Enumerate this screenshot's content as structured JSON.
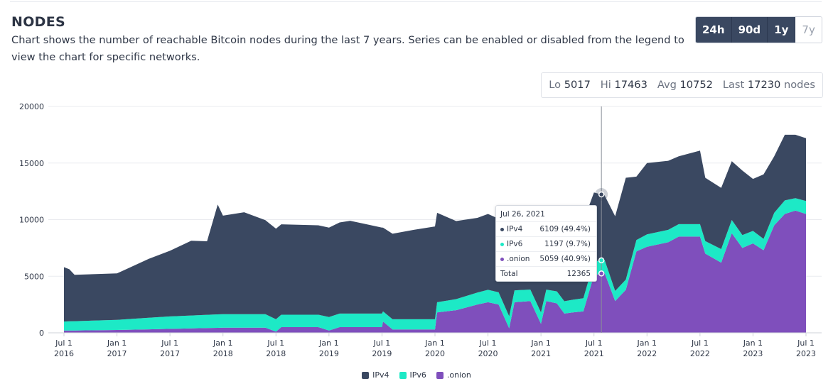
{
  "header": {
    "title": "NODES",
    "description": "Chart shows the number of reachable Bitcoin nodes during the last 7 years. Series can be enabled or disabled from the legend to view the chart for specific networks."
  },
  "range_buttons": [
    {
      "label": "24h",
      "active": true
    },
    {
      "label": "90d",
      "active": true
    },
    {
      "label": "1y",
      "active": true
    },
    {
      "label": "7y",
      "active": false
    }
  ],
  "stats": {
    "lo_label": "Lo",
    "lo": "5017",
    "hi_label": "Hi",
    "hi": "17463",
    "avg_label": "Avg",
    "avg": "10752",
    "last_label": "Last",
    "last": "17230",
    "unit": "nodes"
  },
  "tooltip": {
    "date": "Jul 26, 2021",
    "rows": [
      {
        "name": "IPv4",
        "value": "6109 (49.4%)",
        "color": "#3a4861"
      },
      {
        "name": "IPv6",
        "value": "1197 (9.7%)",
        "color": "#1de9c6"
      },
      {
        "name": ".onion",
        "value": "5059 (40.9%)",
        "color": "#7f4fbc"
      }
    ],
    "total_label": "Total",
    "total": "12365"
  },
  "colors": {
    "ipv4": "#3a4861",
    "ipv6": "#1de9c6",
    "onion": "#7f4fbc",
    "grid": "#e9ebef",
    "crosshair": "#8a8f99"
  },
  "chart_data": {
    "type": "area",
    "stacked": true,
    "title": "",
    "xlabel": "",
    "ylabel": "",
    "ylim": [
      0,
      20000
    ],
    "yticks": [
      "20000",
      "15000",
      "10000",
      "5000",
      "0"
    ],
    "ytick_values": [
      20000,
      15000,
      10000,
      5000,
      0
    ],
    "xticks": [
      {
        "label": [
          "Jul 1",
          "2016"
        ],
        "t": 0
      },
      {
        "label": [
          "Jan 1",
          "2017"
        ],
        "t": 0.5
      },
      {
        "label": [
          "Jul 1",
          "2017"
        ],
        "t": 1.0
      },
      {
        "label": [
          "Jan 1",
          "2018"
        ],
        "t": 1.5
      },
      {
        "label": [
          "Jul 1",
          "2018"
        ],
        "t": 2.0
      },
      {
        "label": [
          "Jan 1",
          "2019"
        ],
        "t": 2.5
      },
      {
        "label": [
          "Jul 1",
          "2019"
        ],
        "t": 3.0
      },
      {
        "label": [
          "Jan 1",
          "2020"
        ],
        "t": 3.5
      },
      {
        "label": [
          "Jul 1",
          "2020"
        ],
        "t": 4.0
      },
      {
        "label": [
          "Jan 1",
          "2021"
        ],
        "t": 4.5
      },
      {
        "label": [
          "Jul 1",
          "2021"
        ],
        "t": 5.0
      },
      {
        "label": [
          "Jan 1",
          "2022"
        ],
        "t": 5.5
      },
      {
        "label": [
          "Jul 1",
          "2022"
        ],
        "t": 6.0
      },
      {
        "label": [
          "Jan 1",
          "2023"
        ],
        "t": 6.5
      },
      {
        "label": [
          "Jul 1",
          "2023"
        ],
        "t": 7.0
      }
    ],
    "series": [
      {
        "name": ".onion",
        "color": "#7f4fbc",
        "points": [
          [
            0,
            200
          ],
          [
            0.5,
            250
          ],
          [
            1.0,
            350
          ],
          [
            1.5,
            450
          ],
          [
            1.9,
            450
          ],
          [
            2.0,
            100
          ],
          [
            2.05,
            500
          ],
          [
            2.4,
            500
          ],
          [
            2.5,
            200
          ],
          [
            2.6,
            500
          ],
          [
            3.0,
            500
          ],
          [
            3.01,
            1000
          ],
          [
            3.1,
            300
          ],
          [
            3.4,
            300
          ],
          [
            3.5,
            300
          ],
          [
            3.52,
            1800
          ],
          [
            3.7,
            2000
          ],
          [
            3.9,
            2500
          ],
          [
            4.0,
            2700
          ],
          [
            4.1,
            2500
          ],
          [
            4.2,
            400
          ],
          [
            4.25,
            2700
          ],
          [
            4.4,
            2800
          ],
          [
            4.5,
            800
          ],
          [
            4.55,
            2800
          ],
          [
            4.65,
            2600
          ],
          [
            4.72,
            1700
          ],
          [
            4.8,
            1800
          ],
          [
            4.9,
            1900
          ],
          [
            5.0,
            5100
          ],
          [
            5.1,
            5300
          ],
          [
            5.2,
            2800
          ],
          [
            5.3,
            3800
          ],
          [
            5.4,
            7200
          ],
          [
            5.5,
            7600
          ],
          [
            5.7,
            8000
          ],
          [
            5.8,
            8500
          ],
          [
            6.0,
            8500
          ],
          [
            6.05,
            7000
          ],
          [
            6.2,
            6200
          ],
          [
            6.3,
            8800
          ],
          [
            6.4,
            7500
          ],
          [
            6.5,
            7900
          ],
          [
            6.6,
            7300
          ],
          [
            6.7,
            9500
          ],
          [
            6.8,
            10500
          ],
          [
            6.9,
            10800
          ],
          [
            7.0,
            10500
          ]
        ]
      },
      {
        "name": "IPv6",
        "color": "#1de9c6",
        "points": [
          [
            0,
            800
          ],
          [
            0.5,
            900
          ],
          [
            1.0,
            1100
          ],
          [
            1.5,
            1200
          ],
          [
            1.9,
            1200
          ],
          [
            2.0,
            1100
          ],
          [
            2.4,
            1100
          ],
          [
            2.5,
            1200
          ],
          [
            3.0,
            1200
          ],
          [
            3.01,
            900
          ],
          [
            3.5,
            900
          ],
          [
            3.52,
            900
          ],
          [
            4.0,
            1100
          ],
          [
            4.5,
            1000
          ],
          [
            5.0,
            1200
          ],
          [
            5.1,
            1150
          ],
          [
            5.2,
            900
          ],
          [
            5.3,
            900
          ],
          [
            5.4,
            1000
          ],
          [
            5.5,
            1100
          ],
          [
            5.8,
            1100
          ],
          [
            6.0,
            1100
          ],
          [
            6.05,
            1100
          ],
          [
            6.2,
            1200
          ],
          [
            6.5,
            1100
          ],
          [
            6.6,
            1000
          ],
          [
            6.7,
            1100
          ],
          [
            6.8,
            1200
          ],
          [
            6.9,
            1100
          ],
          [
            7.0,
            1150
          ]
        ]
      },
      {
        "name": "IPv4",
        "color": "#3a4861",
        "points": [
          [
            0,
            4800
          ],
          [
            0.05,
            4600
          ],
          [
            0.1,
            4100
          ],
          [
            0.5,
            4100
          ],
          [
            0.8,
            5200
          ],
          [
            1.0,
            5800
          ],
          [
            1.2,
            6600
          ],
          [
            1.35,
            6500
          ],
          [
            1.45,
            9700
          ],
          [
            1.5,
            8700
          ],
          [
            1.7,
            9000
          ],
          [
            1.9,
            8300
          ],
          [
            2.0,
            8000
          ],
          [
            2.4,
            7900
          ],
          [
            2.5,
            7900
          ],
          [
            2.7,
            8200
          ],
          [
            3.0,
            7600
          ],
          [
            3.01,
            7400
          ],
          [
            3.3,
            7900
          ],
          [
            3.5,
            8200
          ],
          [
            3.52,
            7900
          ],
          [
            3.7,
            6900
          ],
          [
            3.9,
            6600
          ],
          [
            4.0,
            6700
          ],
          [
            4.1,
            6500
          ],
          [
            4.2,
            7000
          ],
          [
            4.3,
            6800
          ],
          [
            4.5,
            6400
          ],
          [
            4.55,
            6500
          ],
          [
            4.65,
            6500
          ],
          [
            4.72,
            7700
          ],
          [
            4.8,
            7500
          ],
          [
            4.9,
            6800
          ],
          [
            5.0,
            6100
          ],
          [
            5.1,
            5700
          ],
          [
            5.2,
            6600
          ],
          [
            5.3,
            9000
          ],
          [
            5.4,
            5600
          ],
          [
            5.5,
            6300
          ],
          [
            5.7,
            6100
          ],
          [
            5.8,
            6000
          ],
          [
            6.0,
            6500
          ],
          [
            6.05,
            5600
          ],
          [
            6.2,
            5400
          ],
          [
            6.3,
            5200
          ],
          [
            6.4,
            5700
          ],
          [
            6.5,
            4600
          ],
          [
            6.6,
            5700
          ],
          [
            6.7,
            5000
          ],
          [
            6.8,
            5800
          ],
          [
            6.9,
            5600
          ],
          [
            7.0,
            5550
          ]
        ]
      }
    ],
    "crosshair_t": 5.07,
    "legend": [
      "IPv4",
      "IPv6",
      ".onion"
    ],
    "legend_position": "bottom-center",
    "grid": true
  }
}
